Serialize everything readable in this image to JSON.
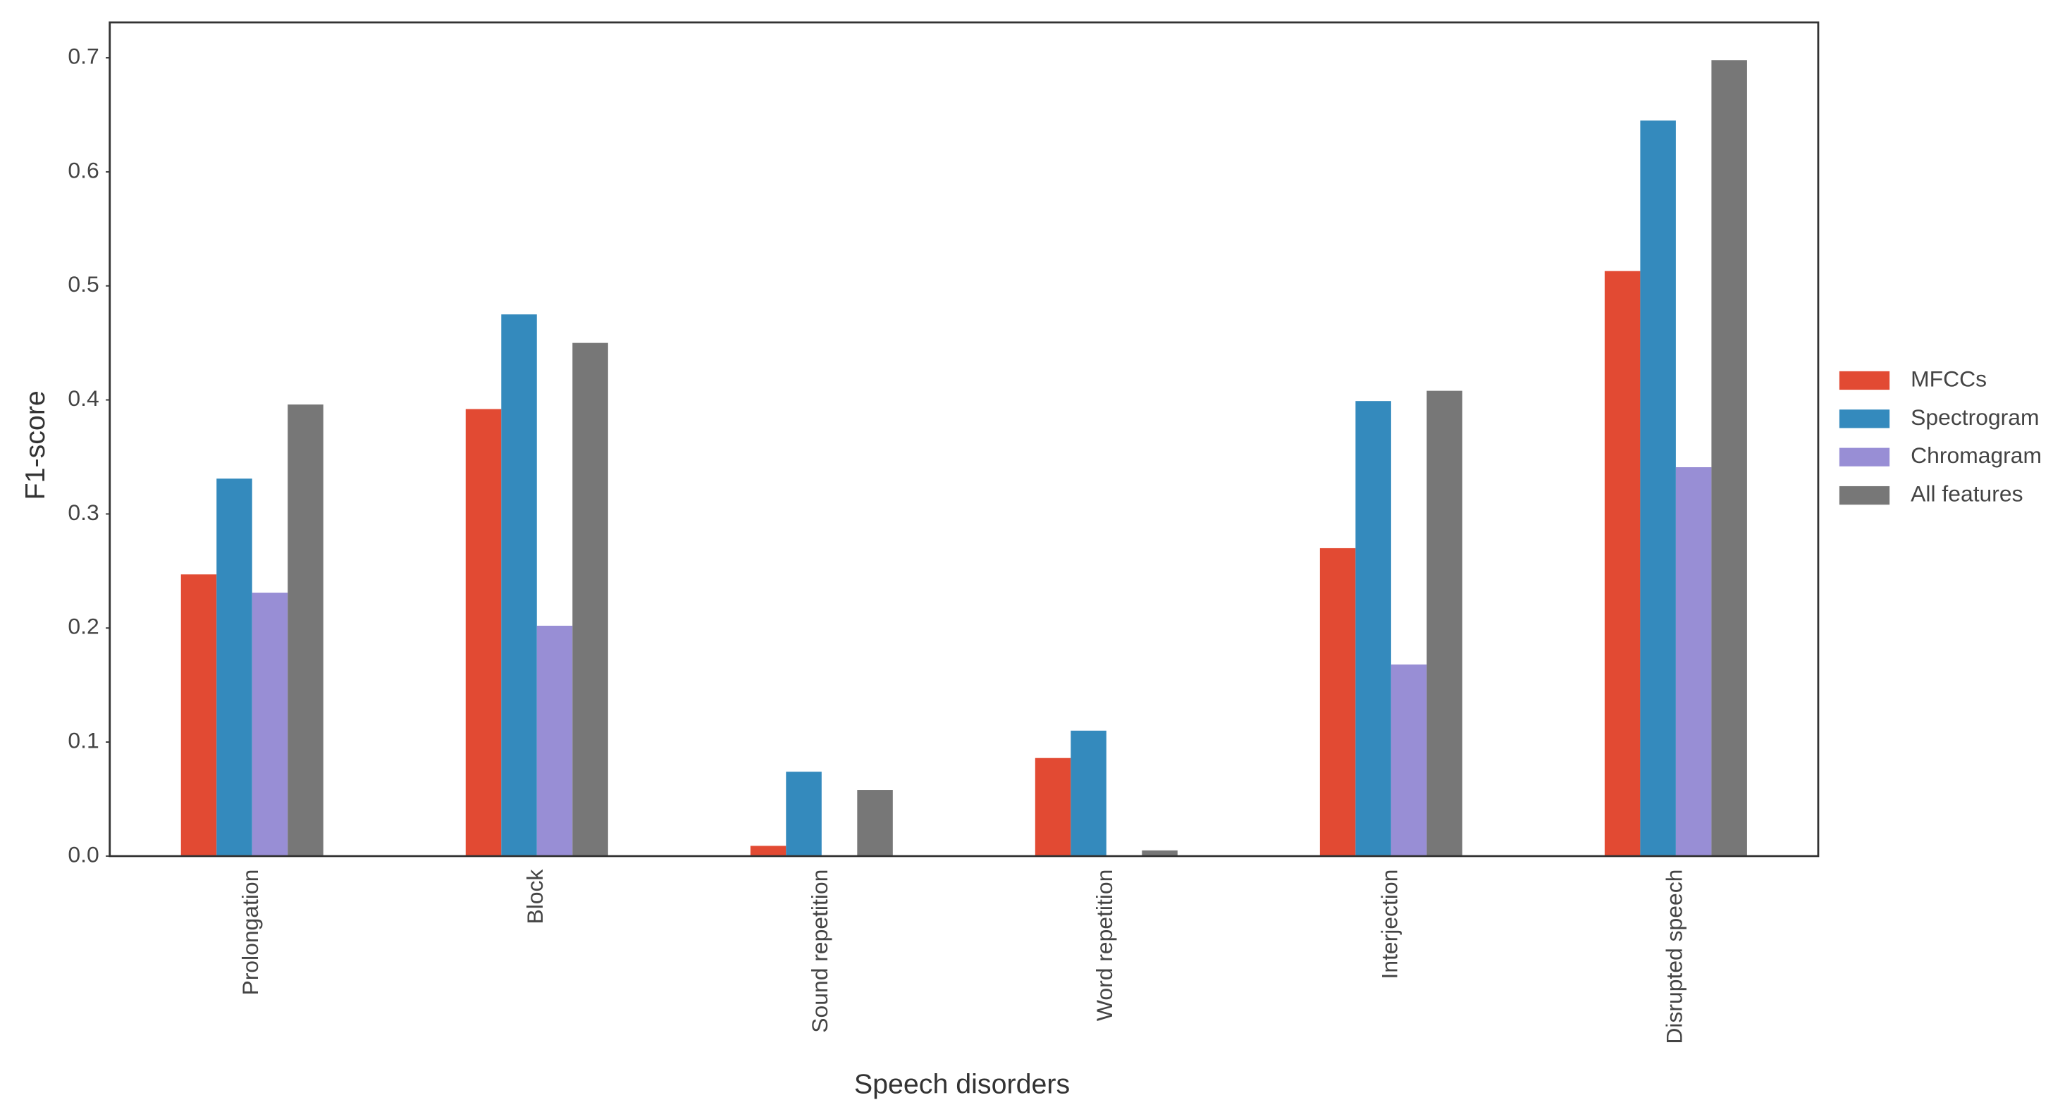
{
  "chart_data": {
    "type": "bar",
    "x_label": "Speech disorders",
    "y_label": "F1-score",
    "categories": [
      "Prolongation",
      "Block",
      "Sound repetition",
      "Word repetition",
      "Interjection",
      "Disrupted speech"
    ],
    "series": [
      {
        "name": "MFCCs",
        "color": "#E24A33",
        "values": [
          0.247,
          0.392,
          0.009,
          0.086,
          0.27,
          0.513
        ]
      },
      {
        "name": "Spectrogram",
        "color": "#348ABD",
        "values": [
          0.331,
          0.475,
          0.074,
          0.11,
          0.399,
          0.645
        ]
      },
      {
        "name": "Chromagram",
        "color": "#988ED5",
        "values": [
          0.231,
          0.202,
          0,
          0,
          0.168,
          0.341
        ]
      },
      {
        "name": "All features",
        "color": "#777777",
        "values": [
          0.396,
          0.45,
          0.058,
          0.005,
          0.408,
          0.698
        ]
      }
    ],
    "ylim": [
      0,
      0.731
    ],
    "yticks": [
      {
        "value": 0,
        "label": "0.0"
      },
      0.1,
      0.2,
      0.3,
      0.4,
      0.5,
      0.6,
      0.7
    ],
    "legend": "right"
  }
}
